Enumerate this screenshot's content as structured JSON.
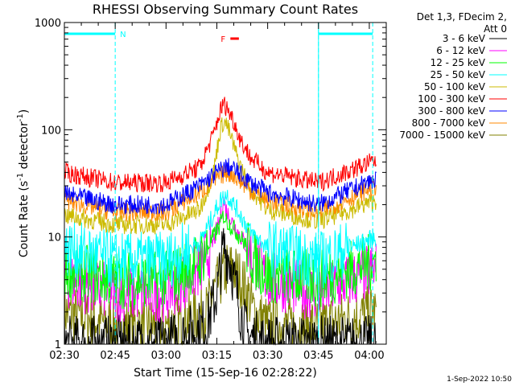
{
  "chart_data": {
    "type": "line",
    "title": "RHESSI Observing Summary Count Rates",
    "xlabel": "Start Time (15-Sep-16 02:28:22)",
    "ylabel_main": "Count Rate (s",
    "ylabel_sup1": "-1",
    "ylabel_mid": " detector",
    "ylabel_sup2": "-1",
    "ylabel_end": ")",
    "y_scale": "log",
    "ylim": [
      1,
      1000
    ],
    "xlim_minutes": [
      150,
      245
    ],
    "x_ticks": [
      {
        "minute": 150,
        "label": "02:30"
      },
      {
        "minute": 165,
        "label": "02:45"
      },
      {
        "minute": 180,
        "label": "03:00"
      },
      {
        "minute": 195,
        "label": "03:15"
      },
      {
        "minute": 210,
        "label": "03:30"
      },
      {
        "minute": 225,
        "label": "03:45"
      },
      {
        "minute": 240,
        "label": "04:00"
      }
    ],
    "y_ticks": [
      {
        "value": 1,
        "label": "1"
      },
      {
        "value": 10,
        "label": "10"
      },
      {
        "value": 100,
        "label": "100"
      },
      {
        "value": 1000,
        "label": "1000"
      }
    ],
    "legend_header": [
      "Det 1,3, FDecim 2,",
      "Att 0"
    ],
    "legend_placement": "right",
    "timestamp": "1-Sep-2022 10:50",
    "flags": [
      {
        "label": "N",
        "color": "#00ffff",
        "start": 150,
        "end": 165
      },
      {
        "label": "",
        "color": "#00ffff",
        "start": 225,
        "end": 241
      },
      {
        "label": "F",
        "color": "#ff0000",
        "start": 199,
        "end": 201.5
      }
    ],
    "night_boundaries": [
      165,
      225,
      241
    ],
    "series": [
      {
        "name": "3 - 6 keV",
        "color": "#000000",
        "x": [
          150,
          165,
          180,
          192,
          195,
          196,
          197,
          198,
          199,
          200,
          201,
          202,
          204,
          210,
          225,
          242
        ],
        "y": [
          1,
          1,
          1,
          1.5,
          3,
          5,
          8,
          7,
          6,
          4,
          3,
          2,
          1.2,
          1,
          1,
          1
        ]
      },
      {
        "name": "6 - 12 keV",
        "color": "#ff00ff",
        "x": [
          150,
          165,
          180,
          190,
          194,
          196,
          197,
          198,
          200,
          203,
          206,
          210,
          225,
          242
        ],
        "y": [
          4,
          3,
          3,
          5,
          9,
          15,
          22,
          17,
          13,
          9,
          6,
          4,
          3,
          5
        ]
      },
      {
        "name": "12 - 25 keV",
        "color": "#00ff00",
        "x": [
          150,
          165,
          180,
          190,
          194,
          196,
          197,
          198,
          200,
          203,
          206,
          210,
          225,
          242
        ],
        "y": [
          5,
          4,
          4,
          6,
          10,
          13,
          16,
          14,
          12,
          9,
          6,
          4.5,
          4,
          6
        ]
      },
      {
        "name": "25 - 50 keV",
        "color": "#00ffff",
        "x": [
          150,
          165,
          180,
          190,
          194,
          196,
          198,
          200,
          202,
          205,
          210,
          225,
          242
        ],
        "y": [
          8,
          6,
          6,
          9,
          16,
          22,
          25,
          20,
          16,
          11,
          8,
          6,
          10
        ]
      },
      {
        "name": "50 - 100 keV",
        "color": "#ccbb00",
        "x": [
          150,
          165,
          180,
          190,
          194,
          196,
          197,
          198,
          200,
          202,
          205,
          210,
          225,
          242
        ],
        "y": [
          16,
          13,
          13,
          18,
          40,
          100,
          120,
          110,
          70,
          45,
          28,
          18,
          14,
          22
        ]
      },
      {
        "name": "100 - 300 keV",
        "color": "#ff0000",
        "x": [
          150,
          165,
          180,
          190,
          194,
          196,
          197,
          198,
          200,
          202,
          205,
          210,
          225,
          242
        ],
        "y": [
          40,
          32,
          32,
          45,
          90,
          150,
          175,
          160,
          120,
          80,
          55,
          40,
          32,
          52
        ]
      },
      {
        "name": "300 - 800 keV",
        "color": "#0000ff",
        "x": [
          150,
          165,
          180,
          190,
          194,
          196,
          198,
          200,
          202,
          205,
          210,
          225,
          242
        ],
        "y": [
          25,
          20,
          20,
          30,
          38,
          42,
          45,
          43,
          38,
          32,
          26,
          20,
          35
        ]
      },
      {
        "name": "800 - 7000 keV",
        "color": "#ff8800",
        "x": [
          150,
          165,
          180,
          190,
          194,
          196,
          198,
          200,
          202,
          205,
          210,
          225,
          242
        ],
        "y": [
          22,
          17,
          17,
          26,
          33,
          37,
          40,
          38,
          33,
          27,
          22,
          17,
          30
        ]
      },
      {
        "name": "7000 - 15000 keV",
        "color": "#808000",
        "x": [
          150,
          165,
          180,
          192,
          194,
          196,
          198,
          200,
          202,
          204,
          206,
          210,
          225,
          242
        ],
        "y": [
          2,
          1.5,
          1.5,
          2,
          3,
          4,
          5,
          5,
          4,
          3,
          2,
          1.5,
          1.5,
          2
        ]
      }
    ]
  }
}
